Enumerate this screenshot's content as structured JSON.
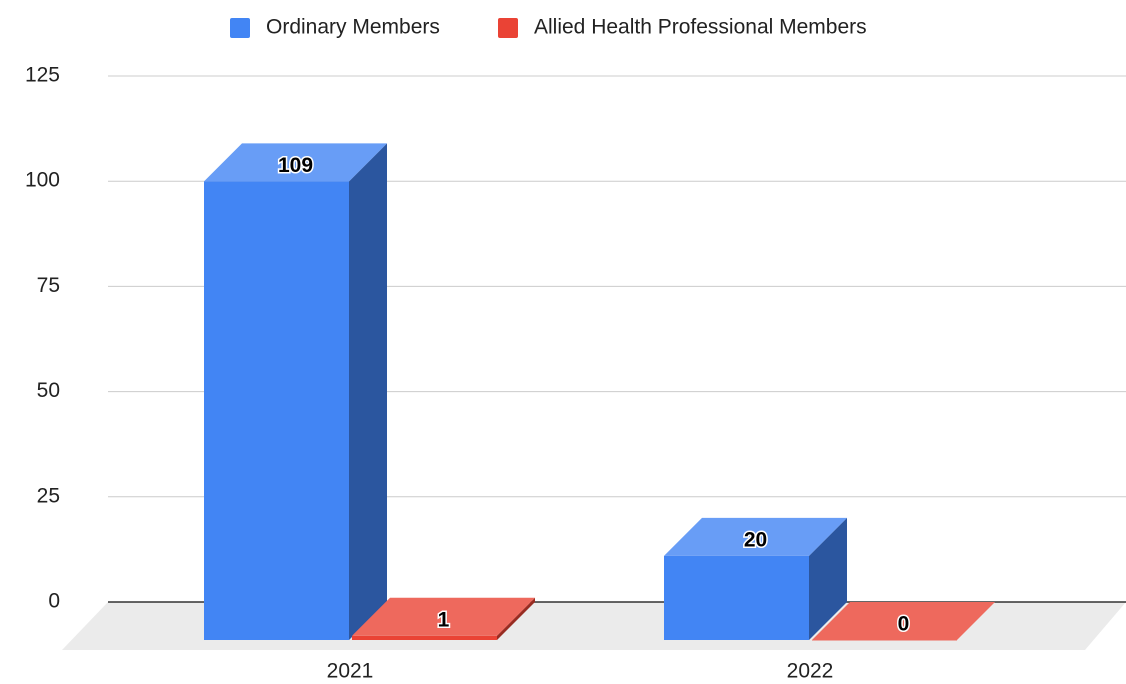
{
  "chart_data": {
    "type": "bar3d",
    "categories": [
      "2021",
      "2022"
    ],
    "series": [
      {
        "name": "Ordinary Members",
        "color": "#4285f4",
        "values": [
          109,
          20
        ]
      },
      {
        "name": "Allied Health Professional Members",
        "color": "#ea4335",
        "values": [
          1,
          0
        ]
      }
    ],
    "ylim": [
      0,
      125
    ],
    "yticks": [
      0,
      25,
      50,
      75,
      100,
      125
    ],
    "grid": true,
    "legend": "top"
  }
}
